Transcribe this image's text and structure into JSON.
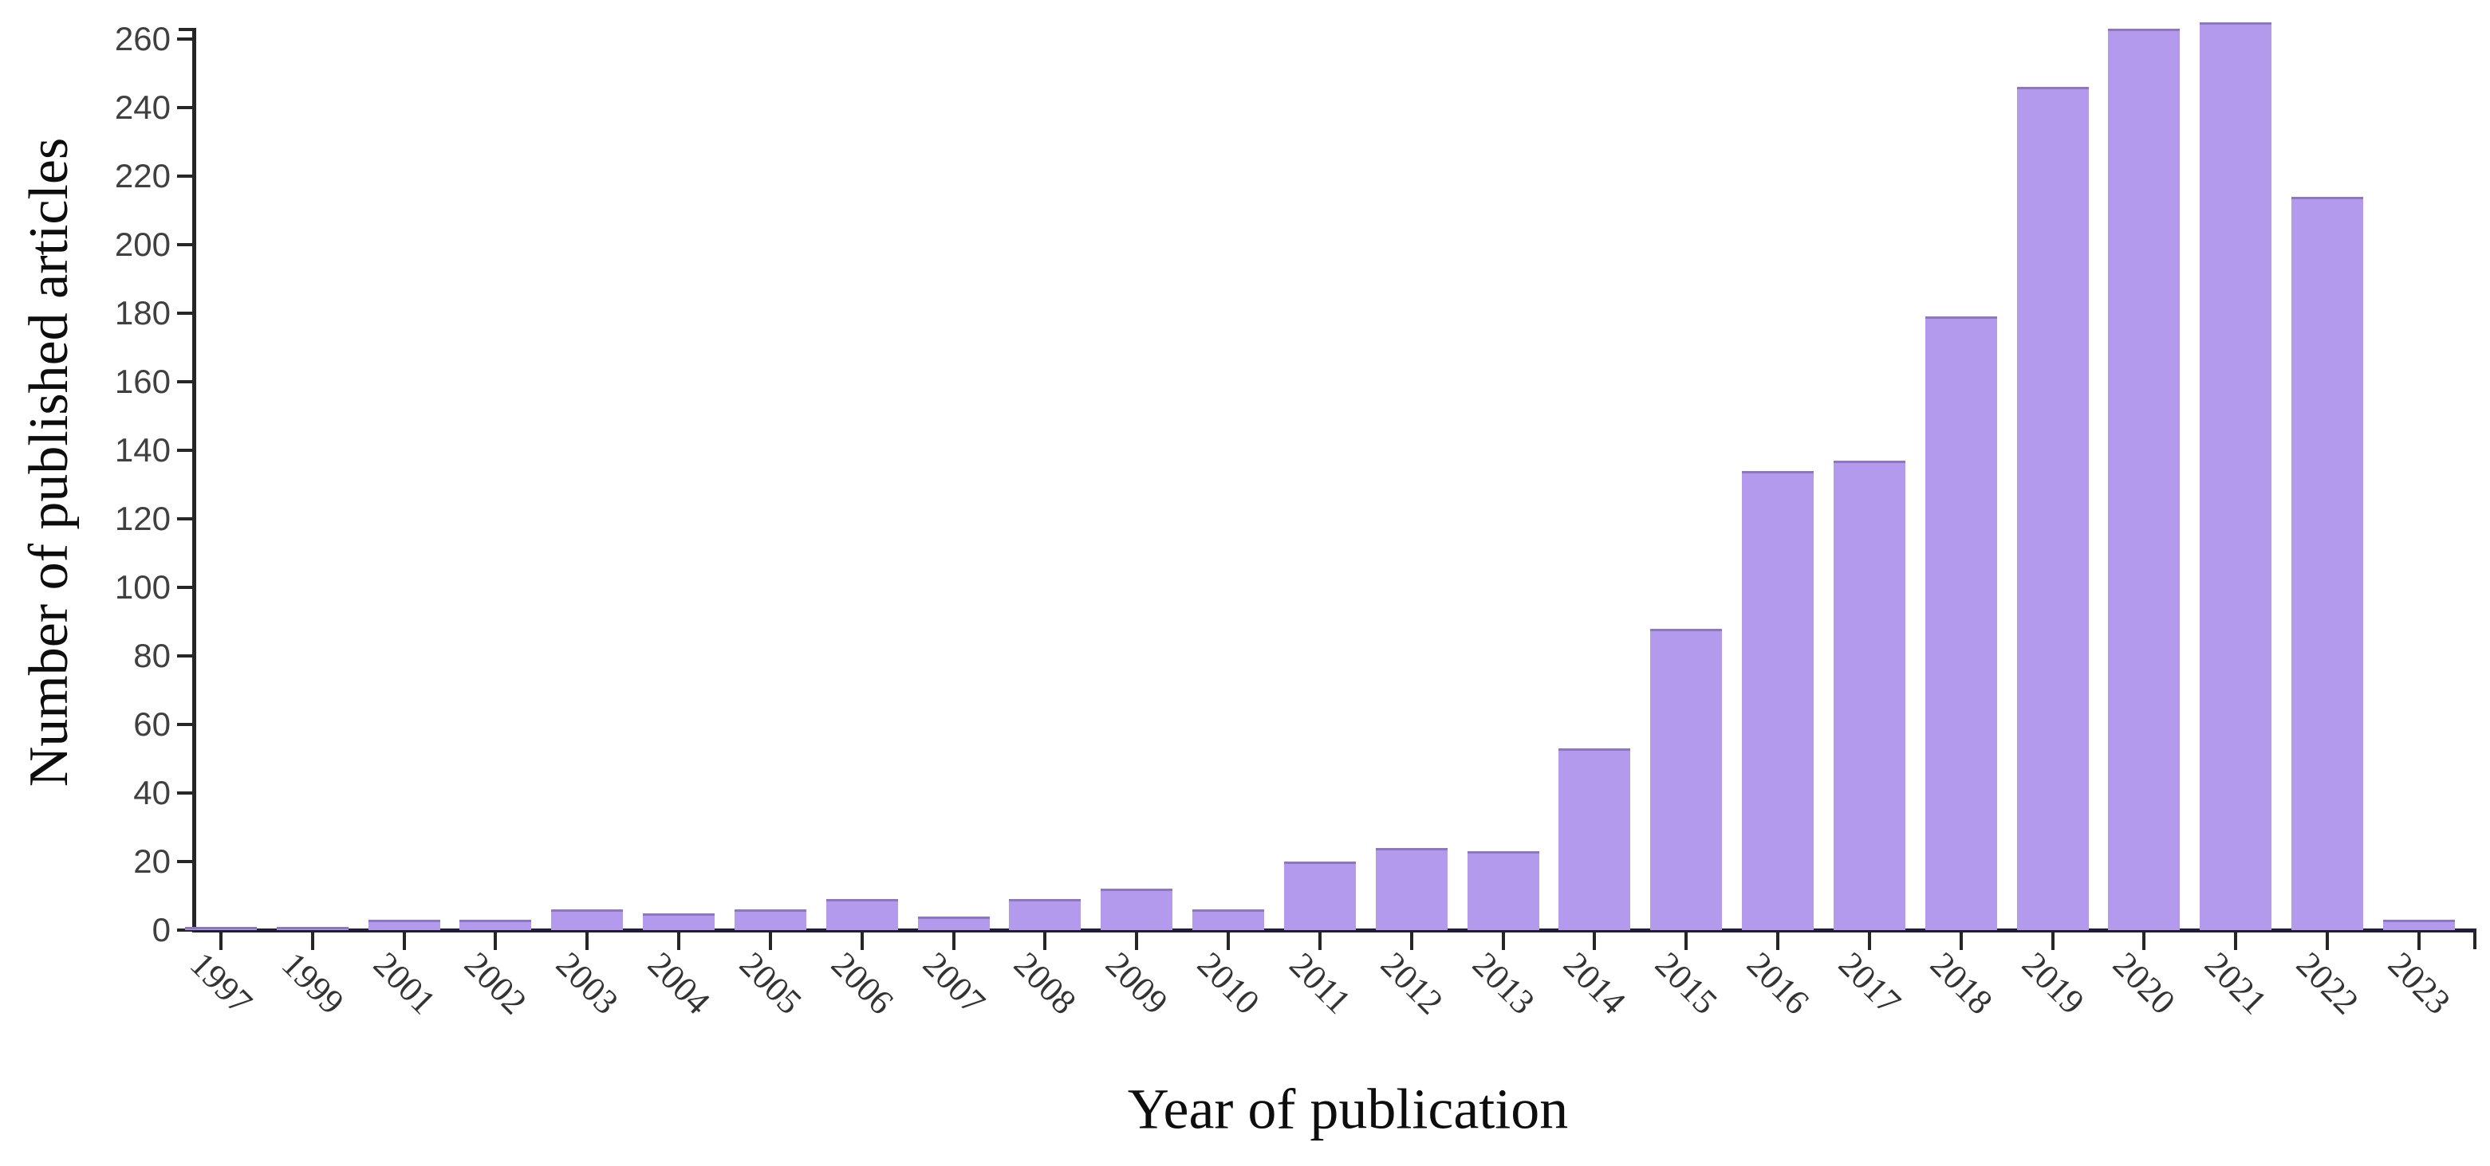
{
  "chart_data": {
    "type": "bar",
    "title": "",
    "xlabel": "Year of publication",
    "ylabel": "Number of published articles",
    "categories": [
      "1997",
      "1999",
      "2001",
      "2002",
      "2003",
      "2004",
      "2005",
      "2006",
      "2007",
      "2008",
      "2009",
      "2010",
      "2011",
      "2012",
      "2013",
      "2014",
      "2015",
      "2016",
      "2017",
      "2018",
      "2019",
      "2020",
      "2021",
      "2022",
      "2023"
    ],
    "values": [
      1,
      1,
      3,
      3,
      6,
      5,
      6,
      9,
      4,
      9,
      12,
      6,
      20,
      24,
      23,
      53,
      88,
      134,
      137,
      179,
      246,
      263,
      265,
      214,
      3
    ],
    "yticks": [
      0,
      20,
      40,
      60,
      80,
      100,
      120,
      140,
      160,
      180,
      200,
      220,
      240,
      260
    ],
    "ylim": [
      0,
      270
    ],
    "grid": false,
    "legend": "none",
    "bar_color": "#b49aec",
    "axis_color": "#262626"
  }
}
